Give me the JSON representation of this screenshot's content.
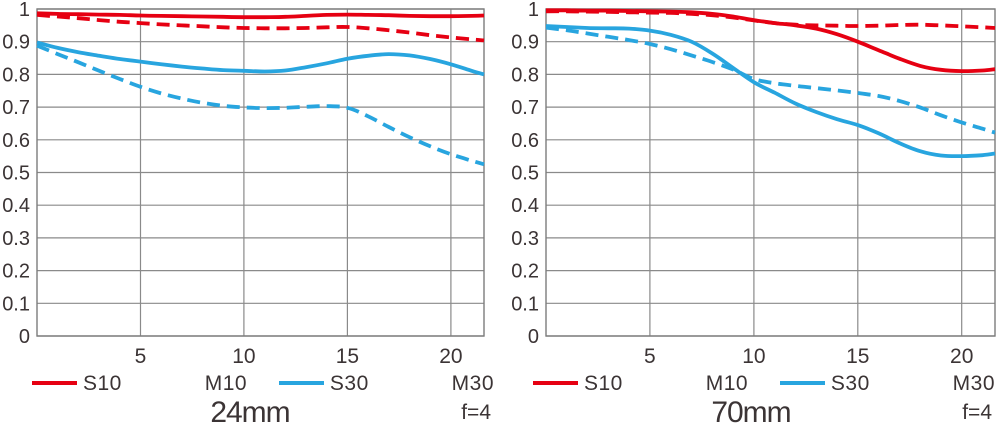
{
  "colors": {
    "red": "#e60012",
    "blue": "#28a5df",
    "grid": "#8a8a8a",
    "axis": "#7c7c7c",
    "text": "#3b3435",
    "background": "#ffffff"
  },
  "chart_data": [
    {
      "type": "line",
      "title": "24mm",
      "aperture": "f=4",
      "xlabel": "",
      "ylabel": "",
      "xlim": [
        0,
        21.6
      ],
      "ylim": [
        0,
        1
      ],
      "grid": true,
      "legend_position": "bottom",
      "xticks": [
        5,
        10,
        15,
        20
      ],
      "xtick_labels": [
        "5",
        "10",
        "15",
        "20"
      ],
      "yticks": [
        0,
        0.1,
        0.2,
        0.3,
        0.4,
        0.5,
        0.6,
        0.7,
        0.8,
        0.9,
        1
      ],
      "ytick_labels": [
        "0",
        "0.1",
        "0.2",
        "0.3",
        "0.4",
        "0.5",
        "0.6",
        "0.7",
        "0.8",
        "0.9",
        "1"
      ],
      "x": [
        0,
        1,
        2,
        3,
        4,
        5,
        6,
        7,
        8,
        9,
        10,
        11,
        12,
        13,
        14,
        15,
        16,
        17,
        18,
        19,
        20,
        21,
        21.6
      ],
      "legend": [
        "S10",
        "M10",
        "S30",
        "M30"
      ],
      "series": [
        {
          "name": "S10",
          "color": "#e60012",
          "style": "solid",
          "values": [
            0.987,
            0.985,
            0.984,
            0.983,
            0.982,
            0.98,
            0.979,
            0.978,
            0.977,
            0.976,
            0.975,
            0.975,
            0.976,
            0.979,
            0.982,
            0.983,
            0.982,
            0.981,
            0.979,
            0.978,
            0.978,
            0.979,
            0.98
          ]
        },
        {
          "name": "M10",
          "color": "#e60012",
          "style": "dashed",
          "values": [
            0.982,
            0.977,
            0.972,
            0.966,
            0.961,
            0.957,
            0.953,
            0.95,
            0.947,
            0.944,
            0.942,
            0.941,
            0.941,
            0.942,
            0.944,
            0.945,
            0.941,
            0.935,
            0.928,
            0.92,
            0.913,
            0.907,
            0.904
          ]
        },
        {
          "name": "S30",
          "color": "#28a5df",
          "style": "solid",
          "values": [
            0.898,
            0.881,
            0.868,
            0.857,
            0.847,
            0.839,
            0.831,
            0.824,
            0.818,
            0.813,
            0.811,
            0.809,
            0.812,
            0.822,
            0.834,
            0.848,
            0.857,
            0.862,
            0.858,
            0.847,
            0.831,
            0.811,
            0.8
          ]
        },
        {
          "name": "M30",
          "color": "#28a5df",
          "style": "dashed",
          "values": [
            0.888,
            0.862,
            0.837,
            0.811,
            0.786,
            0.762,
            0.742,
            0.726,
            0.713,
            0.704,
            0.699,
            0.697,
            0.698,
            0.701,
            0.703,
            0.698,
            0.672,
            0.639,
            0.608,
            0.58,
            0.556,
            0.536,
            0.525
          ]
        }
      ]
    },
    {
      "type": "line",
      "title": "70mm",
      "aperture": "f=4",
      "xlabel": "",
      "ylabel": "",
      "xlim": [
        0,
        21.6
      ],
      "ylim": [
        0,
        1
      ],
      "grid": true,
      "legend_position": "bottom",
      "xticks": [
        5,
        10,
        15,
        20
      ],
      "xtick_labels": [
        "5",
        "10",
        "15",
        "20"
      ],
      "yticks": [
        0,
        0.1,
        0.2,
        0.3,
        0.4,
        0.5,
        0.6,
        0.7,
        0.8,
        0.9,
        1
      ],
      "ytick_labels": [
        "0",
        "0.1",
        "0.2",
        "0.3",
        "0.4",
        "0.5",
        "0.6",
        "0.7",
        "0.8",
        "0.9",
        "1"
      ],
      "x": [
        0,
        1,
        2,
        3,
        4,
        5,
        6,
        7,
        8,
        9,
        10,
        11,
        12,
        13,
        14,
        15,
        16,
        17,
        18,
        19,
        20,
        21,
        21.6
      ],
      "legend": [
        "S10",
        "M10",
        "S30",
        "M30"
      ],
      "series": [
        {
          "name": "S10",
          "color": "#e60012",
          "style": "solid",
          "values": [
            0.996,
            0.996,
            0.995,
            0.995,
            0.994,
            0.993,
            0.992,
            0.99,
            0.985,
            0.977,
            0.966,
            0.957,
            0.95,
            0.94,
            0.923,
            0.9,
            0.874,
            0.848,
            0.826,
            0.814,
            0.81,
            0.812,
            0.816
          ]
        },
        {
          "name": "M10",
          "color": "#e60012",
          "style": "dashed",
          "values": [
            0.993,
            0.993,
            0.992,
            0.991,
            0.99,
            0.989,
            0.988,
            0.985,
            0.981,
            0.974,
            0.965,
            0.957,
            0.952,
            0.95,
            0.949,
            0.948,
            0.949,
            0.951,
            0.952,
            0.95,
            0.947,
            0.944,
            0.942
          ]
        },
        {
          "name": "S30",
          "color": "#28a5df",
          "style": "solid",
          "values": [
            0.948,
            0.945,
            0.942,
            0.941,
            0.94,
            0.934,
            0.921,
            0.9,
            0.864,
            0.82,
            0.776,
            0.744,
            0.711,
            0.685,
            0.663,
            0.645,
            0.62,
            0.59,
            0.565,
            0.552,
            0.55,
            0.553,
            0.558
          ]
        },
        {
          "name": "M30",
          "color": "#28a5df",
          "style": "dashed",
          "values": [
            0.943,
            0.935,
            0.925,
            0.915,
            0.905,
            0.893,
            0.877,
            0.858,
            0.838,
            0.815,
            0.786,
            0.773,
            0.765,
            0.758,
            0.751,
            0.743,
            0.734,
            0.719,
            0.699,
            0.675,
            0.653,
            0.634,
            0.622
          ]
        }
      ]
    }
  ]
}
